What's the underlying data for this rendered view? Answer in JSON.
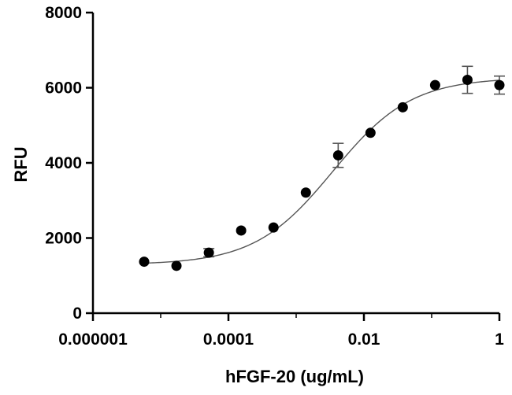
{
  "chart_data": {
    "type": "scatter",
    "title": "",
    "xlabel": "hFGF-20 (ug/mL)",
    "ylabel": "RFU",
    "x_scale": "log",
    "xlim": [
      1e-06,
      1
    ],
    "ylim": [
      0,
      8000
    ],
    "x_ticks": [
      1e-06,
      0.0001,
      0.01,
      1
    ],
    "x_tick_labels": [
      "0.000001",
      "0.0001",
      "0.01",
      "1"
    ],
    "y_ticks": [
      0,
      2000,
      4000,
      6000,
      8000
    ],
    "y_tick_labels": [
      "0",
      "2000",
      "4000",
      "6000",
      "8000"
    ],
    "grid": false,
    "legend": "none",
    "series": [
      {
        "x": [
          5.7e-06,
          1.71e-05,
          5.14e-05,
          0.000154,
          0.000463,
          0.00139,
          0.00417,
          0.0125,
          0.0375,
          0.1125,
          0.3375,
          1.0
        ],
        "y": [
          1370,
          1260,
          1610,
          2200,
          2280,
          3210,
          4200,
          4800,
          5480,
          6070,
          6210,
          6070
        ],
        "y_err": [
          0,
          0,
          110,
          0,
          0,
          0,
          320,
          0,
          0,
          0,
          360,
          240
        ]
      }
    ],
    "fit": {
      "model": "4PL",
      "bottom": 1290,
      "top": 6270,
      "ec50": 0.0035,
      "hill": 0.75
    },
    "colors": {
      "points": "#000000",
      "curve": "#555555",
      "axes": "#000000"
    }
  }
}
